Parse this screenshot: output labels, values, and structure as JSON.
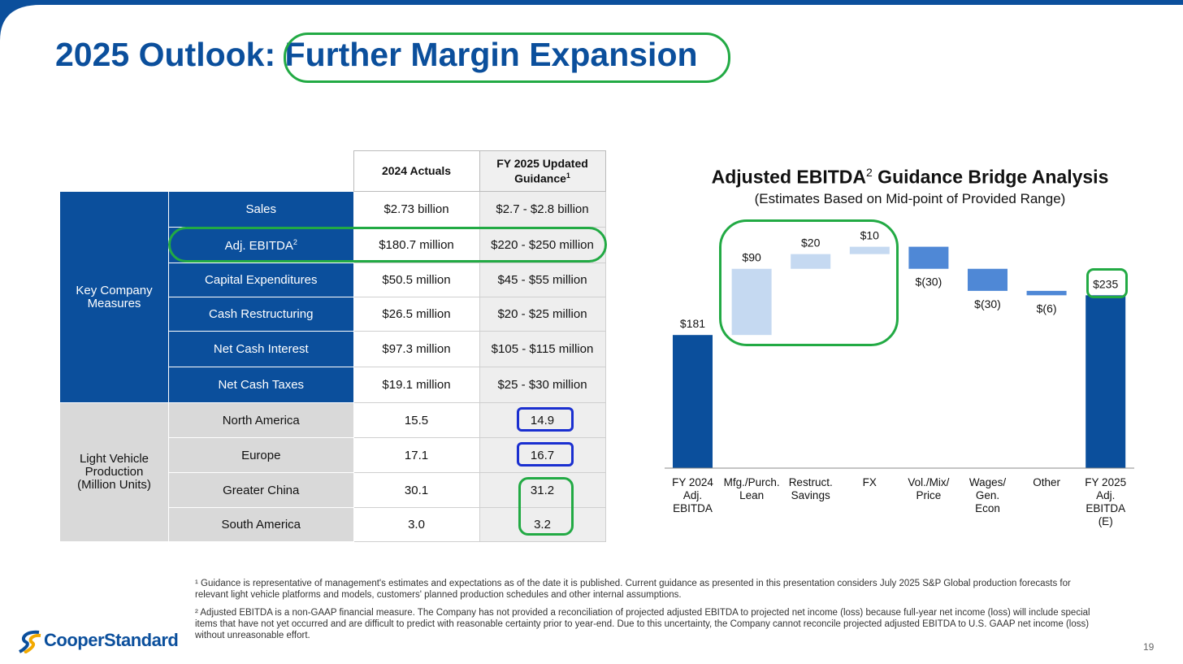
{
  "slide": {
    "title_prefix": "2025 Outlook:",
    "title_highlight": "Further Margin Expansion",
    "page_number": "19",
    "logo_text": "CooperStandard"
  },
  "table": {
    "col_headers": [
      "2024 Actuals",
      "FY 2025 Updated Guidance"
    ],
    "col_header_footnote": "1",
    "groups": [
      {
        "label": "Key Company Measures",
        "rows": [
          {
            "metric": "Sales",
            "sup": "",
            "actual": "$2.73 billion",
            "guidance": "$2.7 - $2.8 billion"
          },
          {
            "metric": "Adj. EBITDA",
            "sup": "2",
            "actual": "$180.7 million",
            "guidance": "$220 - $250 million"
          },
          {
            "metric": "Capital Expenditures",
            "sup": "",
            "actual": "$50.5 million",
            "guidance": "$45 - $55 million"
          },
          {
            "metric": "Cash Restructuring",
            "sup": "",
            "actual": "$26.5 million",
            "guidance": "$20 - $25 million"
          },
          {
            "metric": "Net Cash Interest",
            "sup": "",
            "actual": "$97.3 million",
            "guidance": "$105 - $115 million"
          },
          {
            "metric": "Net Cash Taxes",
            "sup": "",
            "actual": "$19.1 million",
            "guidance": "$25 - $30 million"
          }
        ]
      },
      {
        "label": "Light Vehicle Production (Million Units)",
        "rows": [
          {
            "metric": "North America",
            "sup": "",
            "actual": "15.5",
            "guidance": "14.9"
          },
          {
            "metric": "Europe",
            "sup": "",
            "actual": "17.1",
            "guidance": "16.7"
          },
          {
            "metric": "Greater China",
            "sup": "",
            "actual": "30.1",
            "guidance": "31.2"
          },
          {
            "metric": "South America",
            "sup": "",
            "actual": "3.0",
            "guidance": "3.2"
          }
        ]
      }
    ]
  },
  "chart_data": {
    "type": "bar",
    "subtype": "waterfall",
    "title": "Adjusted EBITDA",
    "title_sup": "2",
    "title_rest": " Guidance Bridge Analysis",
    "subtitle": "(Estimates Based on Mid-point of Provided Range)",
    "categories": [
      "FY 2024 Adj. EBITDA",
      "Mfg./Purch. Lean",
      "Restruct. Savings",
      "FX",
      "Vol./Mix/ Price",
      "Wages/ Gen. Econ",
      "Other",
      "FY 2025 Adj. EBITDA (E)"
    ],
    "category_lines": [
      [
        "FY 2024",
        "Adj.",
        "EBITDA"
      ],
      [
        "Mfg./Purch.",
        "Lean"
      ],
      [
        "Restruct.",
        "Savings"
      ],
      [
        "FX"
      ],
      [
        "Vol./Mix/",
        "Price"
      ],
      [
        "Wages/",
        "Gen.",
        "Econ"
      ],
      [
        "Other"
      ],
      [
        "FY 2025",
        "Adj.",
        "EBITDA",
        "(E)"
      ]
    ],
    "values": [
      181,
      90,
      20,
      10,
      -30,
      -30,
      -6,
      235
    ],
    "kinds": [
      "total",
      "increase",
      "increase",
      "increase",
      "decrease",
      "decrease",
      "decrease",
      "total"
    ],
    "labels": [
      "$181",
      "$90",
      "$20",
      "$10",
      "$(30)",
      "$(30)",
      "$(6)",
      "$235"
    ],
    "colors": {
      "total": "#0b4f9c",
      "increase": "#c5d9f1",
      "decrease": "#4f88d6"
    },
    "grid": false,
    "legend": "none"
  },
  "footnotes": [
    "¹ Guidance is representative of management's estimates and expectations as of the date it is published. Current guidance as presented in this presentation considers July 2025 S&P Global production forecasts for relevant light vehicle platforms and models, customers' planned production schedules and other internal assumptions.",
    "² Adjusted EBITDA is a non-GAAP financial measure. The Company has not provided a reconciliation of projected adjusted EBITDA to projected net income (loss) because full-year net income (loss) will include special items that have not yet occurred and are difficult to predict with reasonable certainty prior to year-end. Due to this uncertainty, the Company cannot reconcile projected adjusted EBITDA to U.S. GAAP net income (loss) without unreasonable effort."
  ],
  "colors": {
    "brand_blue": "#0b4f9c",
    "highlight_green": "#22aa44",
    "highlight_blue": "#1a2fd0"
  }
}
